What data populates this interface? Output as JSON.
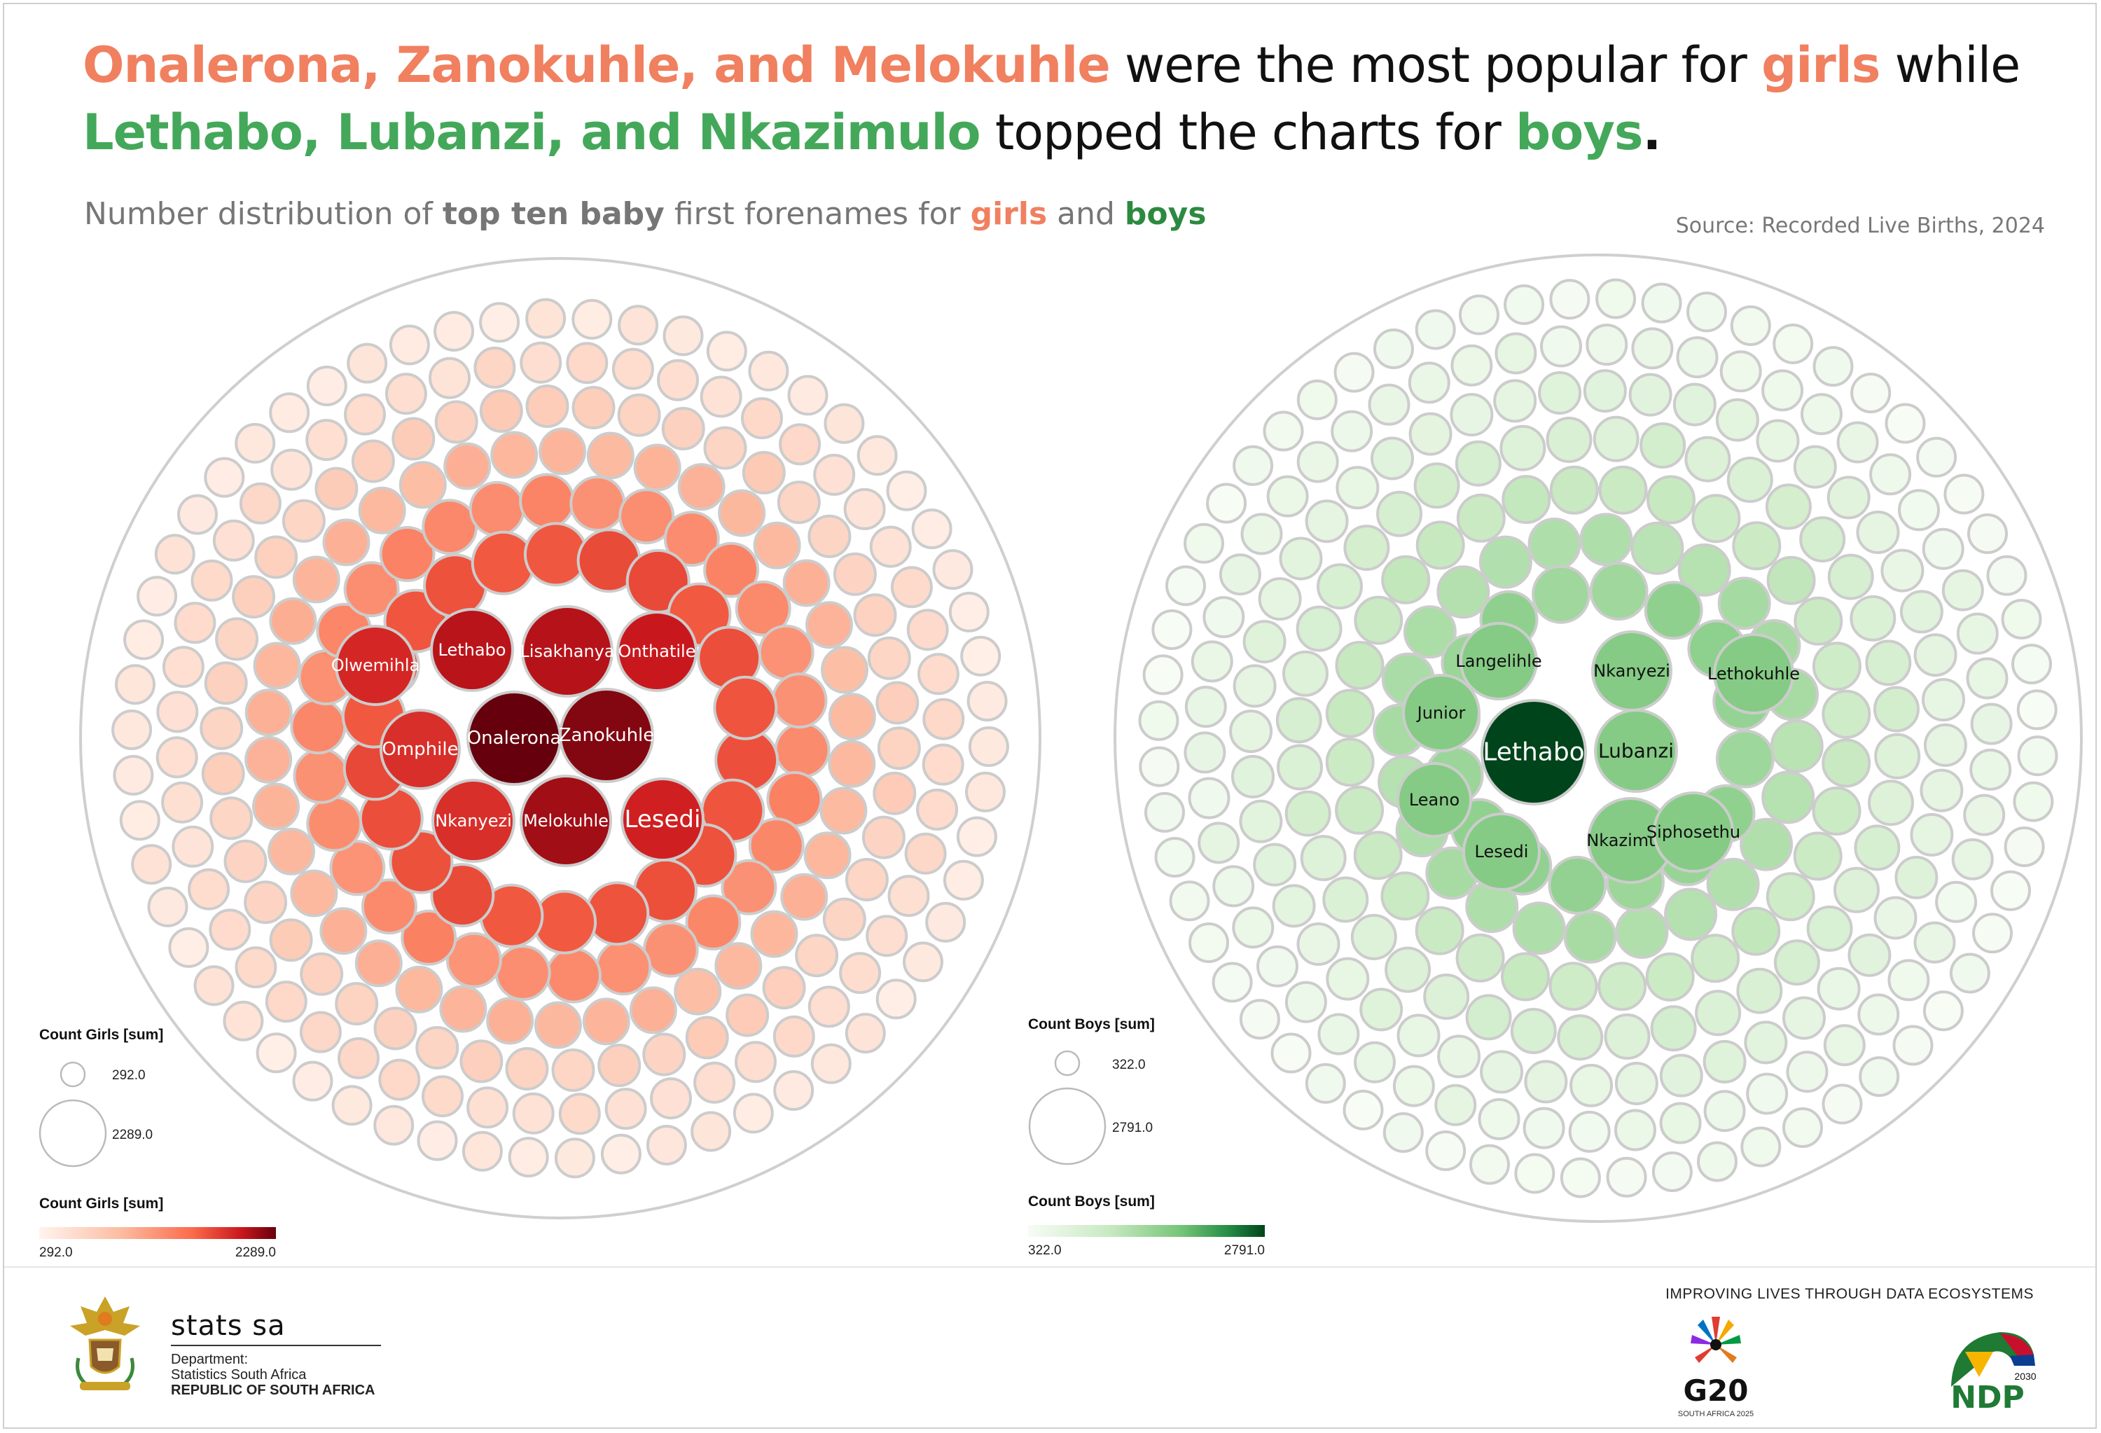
{
  "headline": {
    "line1": [
      {
        "text": "Onalerona, Zanokuhle, and Melokuhle",
        "style": "girl"
      },
      {
        "text": " were the most popular for ",
        "style": "plain"
      },
      {
        "text": "girls",
        "style": "girl"
      },
      {
        "text": " while",
        "style": "plain"
      }
    ],
    "line2": [
      {
        "text": "Lethabo, Lubanzi, and Nkazimulo",
        "style": "boy"
      },
      {
        "text": " topped the charts for ",
        "style": "plain"
      },
      {
        "text": "boys",
        "style": "boy"
      },
      {
        "text": ".",
        "style": "plainbold"
      }
    ]
  },
  "subtitle": {
    "p1": "Number distribution of ",
    "p2": "top ten baby",
    "p3": " first forenames for ",
    "p4": "girls",
    "p5": " and ",
    "p6": "boys"
  },
  "source": "Source: Recorded Live Births, 2024",
  "colors": {
    "girl_accent": "#f0805f",
    "boy_accent": "#44a85a",
    "girl_scale": [
      "#fff4ee",
      "#fcbba1",
      "#fb6a4a",
      "#cb181d",
      "#67000d"
    ],
    "boy_scale": [
      "#f7fcf5",
      "#c7e9c0",
      "#74c476",
      "#238b45",
      "#00441b"
    ],
    "outline": "#cccccc"
  },
  "chart_data": [
    {
      "type": "packed-bubble",
      "title": "Count Girls [sum]",
      "size_legend": {
        "title": "Count Girls [sum]",
        "min": "292.0",
        "max": "2289.0"
      },
      "color_legend": {
        "title": "Count Girls [sum]",
        "min": "292.0",
        "max": "2289.0"
      },
      "labelled_bubbles": [
        {
          "name": "Onalerona",
          "value": 2289
        },
        {
          "name": "Zanokuhle",
          "value": 2150
        },
        {
          "name": "Melokuhle",
          "value": 2000
        },
        {
          "name": "Lisakhanya",
          "value": 1900
        },
        {
          "name": "Lethabo",
          "value": 1880
        },
        {
          "name": "Onthatile",
          "value": 1800
        },
        {
          "name": "Lesedi",
          "value": 1750
        },
        {
          "name": "Olwemihla",
          "value": 1700
        },
        {
          "name": "Omphile",
          "value": 1650
        },
        {
          "name": "Nkanyezi",
          "value": 1650
        }
      ]
    },
    {
      "type": "packed-bubble",
      "title": "Count Boys [sum]",
      "size_legend": {
        "title": "Count Boys [sum]",
        "min": "322.0",
        "max": "2791.0"
      },
      "color_legend": {
        "title": "Count Boys [sum]",
        "min": "322.0",
        "max": "2791.0"
      },
      "labelled_bubbles": [
        {
          "name": "Lethabo",
          "value": 2791
        },
        {
          "name": "Lubanzi",
          "value": 1400
        },
        {
          "name": "Nkazimulo",
          "value": 1350
        },
        {
          "name": "Nkanyezi",
          "value": 1300
        },
        {
          "name": "Siphosethu",
          "value": 1100
        },
        {
          "name": "Langelihle",
          "value": 1100
        },
        {
          "name": "Lethokuhle",
          "value": 1000
        },
        {
          "name": "Junior",
          "value": 1000
        },
        {
          "name": "Leano",
          "value": 1000
        },
        {
          "name": "Lesedi",
          "value": 1000
        }
      ]
    }
  ],
  "footer": {
    "org_name": "stats sa",
    "dept_line1": "Department:",
    "dept_line2": "Statistics South Africa",
    "dept_line3": "REPUBLIC OF SOUTH AFRICA",
    "tagline": "IMPROVING LIVES THROUGH DATA ECOSYSTEMS",
    "g20_text": "G20",
    "g20_sub": "SOUTH AFRICA 2025",
    "ndp_text": "NDP",
    "ndp_year": "2030"
  }
}
